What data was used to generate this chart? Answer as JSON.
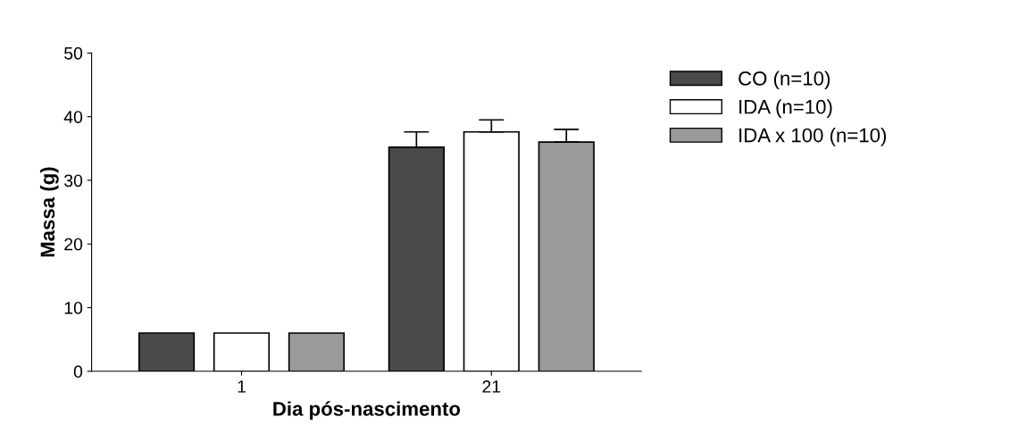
{
  "chart_data": {
    "type": "bar",
    "xlabel": "Dia pós-nascimento",
    "ylabel": "Massa (g)",
    "categories": [
      "1",
      "21"
    ],
    "series": [
      {
        "name": "CO (n=10)",
        "color": "#4a4a4a",
        "values": [
          6.0,
          35.2
        ],
        "errors": [
          null,
          [
            35.2,
            37.6
          ]
        ]
      },
      {
        "name": "IDA (n=10)",
        "color": "#ffffff",
        "values": [
          6.0,
          37.6
        ],
        "errors": [
          null,
          [
            37.6,
            39.5
          ]
        ]
      },
      {
        "name": "IDA x 100 (n=10)",
        "color": "#9a9a9a",
        "values": [
          6.0,
          36.0
        ],
        "errors": [
          null,
          [
            36.0,
            38.0
          ]
        ]
      }
    ],
    "ylim": [
      0,
      50
    ],
    "yticks": [
      0,
      10,
      20,
      30,
      40,
      50
    ],
    "grid": false,
    "legend": "top right"
  }
}
